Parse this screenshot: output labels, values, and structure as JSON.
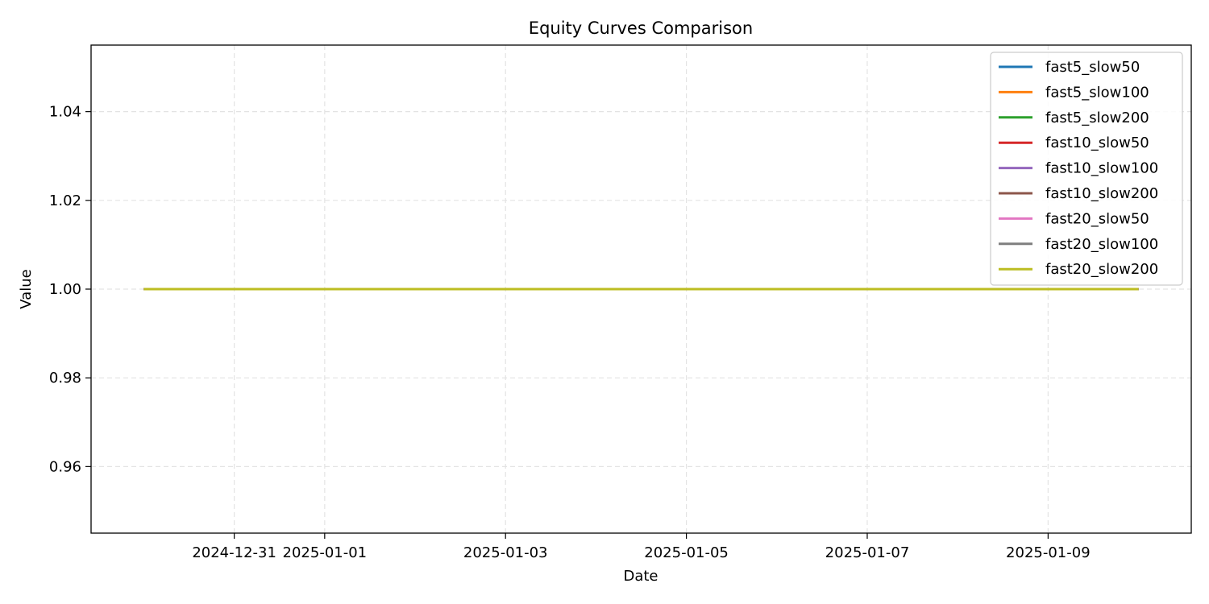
{
  "chart_data": {
    "type": "line",
    "title": "Equity Curves Comparison",
    "xlabel": "Date",
    "ylabel": "Value",
    "x": [
      "2024-12-30",
      "2024-12-31",
      "2025-01-01",
      "2025-01-02",
      "2025-01-03",
      "2025-01-04",
      "2025-01-05",
      "2025-01-06",
      "2025-01-07",
      "2025-01-08",
      "2025-01-09",
      "2025-01-10"
    ],
    "xlim": [
      "2024-12-29T10:00",
      "2025-01-10T14:00"
    ],
    "ylim": [
      0.945,
      1.055
    ],
    "x_ticks": [
      "2024-12-31",
      "2025-01-01",
      "2025-01-03",
      "2025-01-05",
      "2025-01-07",
      "2025-01-09"
    ],
    "y_ticks": [
      "0.96",
      "0.98",
      "1.00",
      "1.02",
      "1.04"
    ],
    "grid": true,
    "legend_position": "top-right",
    "series": [
      {
        "name": "fast5_slow50",
        "color": "#1f77b4",
        "values": [
          1,
          1,
          1,
          1,
          1,
          1,
          1,
          1,
          1,
          1,
          1,
          1
        ]
      },
      {
        "name": "fast5_slow100",
        "color": "#ff7f0e",
        "values": [
          1,
          1,
          1,
          1,
          1,
          1,
          1,
          1,
          1,
          1,
          1,
          1
        ]
      },
      {
        "name": "fast5_slow200",
        "color": "#2ca02c",
        "values": [
          1,
          1,
          1,
          1,
          1,
          1,
          1,
          1,
          1,
          1,
          1,
          1
        ]
      },
      {
        "name": "fast10_slow50",
        "color": "#d62728",
        "values": [
          1,
          1,
          1,
          1,
          1,
          1,
          1,
          1,
          1,
          1,
          1,
          1
        ]
      },
      {
        "name": "fast10_slow100",
        "color": "#9467bd",
        "values": [
          1,
          1,
          1,
          1,
          1,
          1,
          1,
          1,
          1,
          1,
          1,
          1
        ]
      },
      {
        "name": "fast10_slow200",
        "color": "#8c564b",
        "values": [
          1,
          1,
          1,
          1,
          1,
          1,
          1,
          1,
          1,
          1,
          1,
          1
        ]
      },
      {
        "name": "fast20_slow50",
        "color": "#e377c2",
        "values": [
          1,
          1,
          1,
          1,
          1,
          1,
          1,
          1,
          1,
          1,
          1,
          1
        ]
      },
      {
        "name": "fast20_slow100",
        "color": "#7f7f7f",
        "values": [
          1,
          1,
          1,
          1,
          1,
          1,
          1,
          1,
          1,
          1,
          1,
          1
        ]
      },
      {
        "name": "fast20_slow200",
        "color": "#bcbd22",
        "values": [
          1,
          1,
          1,
          1,
          1,
          1,
          1,
          1,
          1,
          1,
          1,
          1
        ]
      }
    ]
  }
}
